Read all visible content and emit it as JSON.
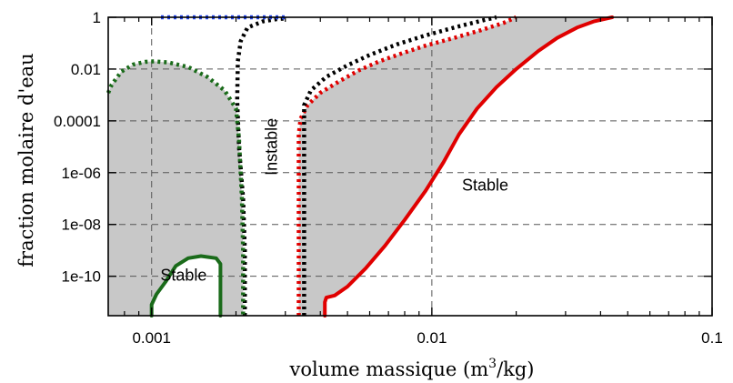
{
  "chart_data": {
    "type": "line",
    "title": "",
    "xlabel": "volume massique (m³/kg)",
    "xlabel_parts": {
      "main": "volume massique (m",
      "sup": "3",
      "tail": "/kg)"
    },
    "ylabel": "fraction molaire d'eau",
    "x_scale": "log",
    "y_scale": "log",
    "xlim": [
      0.0007,
      0.1
    ],
    "ylim": [
      3e-12,
      1
    ],
    "x_ticks": [
      {
        "value": 0.001,
        "label": "0.001"
      },
      {
        "value": 0.01,
        "label": "0.01"
      },
      {
        "value": 0.1,
        "label": "0.1"
      }
    ],
    "y_ticks": [
      {
        "value": 1,
        "label": "1"
      },
      {
        "value": 0.01,
        "label": "0.01"
      },
      {
        "value": 0.0001,
        "label": "0.0001"
      },
      {
        "value": 1e-06,
        "label": "1e-06"
      },
      {
        "value": 1e-08,
        "label": "1e-08"
      },
      {
        "value": 1e-10,
        "label": "1e-10"
      }
    ],
    "grid": true,
    "legend": "none",
    "shaded_regions": [
      {
        "name": "left-region",
        "color": "#c8c8c8",
        "points": [
          [
            0.0007,
            3e-12
          ],
          [
            0.0007,
            0.0012
          ],
          [
            0.00072,
            0.0025
          ],
          [
            0.00078,
            0.008
          ],
          [
            0.00086,
            0.015
          ],
          [
            0.00095,
            0.019
          ],
          [
            0.00102,
            0.02
          ],
          [
            0.00115,
            0.018
          ],
          [
            0.00135,
            0.012
          ],
          [
            0.00158,
            0.005
          ],
          [
            0.00182,
            0.0015
          ],
          [
            0.002,
            0.0003
          ],
          [
            0.00205,
            2e-05
          ],
          [
            0.0021,
            1e-07
          ],
          [
            0.00212,
            1e-09
          ],
          [
            0.00212,
            3e-12
          ],
          [
            0.00176,
            3e-12
          ],
          [
            0.00176,
            3e-10
          ],
          [
            0.0017,
            5e-10
          ],
          [
            0.0015,
            6e-10
          ],
          [
            0.00135,
            5e-10
          ],
          [
            0.00122,
            2.5e-10
          ],
          [
            0.00112,
            6e-11
          ],
          [
            0.00104,
            2e-11
          ],
          [
            0.001,
            8e-12
          ],
          [
            0.001,
            3e-12
          ]
        ]
      },
      {
        "name": "right-region",
        "color": "#c8c8c8",
        "points": [
          [
            0.00335,
            3e-12
          ],
          [
            0.00335,
            3e-05
          ],
          [
            0.0034,
            0.00012
          ],
          [
            0.0036,
            0.0004
          ],
          [
            0.004,
            0.0012
          ],
          [
            0.0047,
            0.0035
          ],
          [
            0.0055,
            0.009
          ],
          [
            0.0065,
            0.02
          ],
          [
            0.0078,
            0.04
          ],
          [
            0.0095,
            0.08
          ],
          [
            0.012,
            0.16
          ],
          [
            0.015,
            0.32
          ],
          [
            0.018,
            0.6
          ],
          [
            0.02,
            1
          ],
          [
            0.044,
            1
          ],
          [
            0.038,
            0.7
          ],
          [
            0.033,
            0.4
          ],
          [
            0.028,
            0.16
          ],
          [
            0.024,
            0.05
          ],
          [
            0.02,
            0.01
          ],
          [
            0.017,
            0.002
          ],
          [
            0.0145,
            0.0003
          ],
          [
            0.0125,
            3e-05
          ],
          [
            0.011,
            2.5e-06
          ],
          [
            0.0095,
            2e-07
          ],
          [
            0.008,
            1.5e-08
          ],
          [
            0.0068,
            1.5e-09
          ],
          [
            0.0058,
            2e-10
          ],
          [
            0.005,
            4e-11
          ],
          [
            0.0045,
            1.8e-11
          ],
          [
            0.0042,
            1.5e-11
          ],
          [
            0.00415,
            1e-11
          ],
          [
            0.00415,
            3e-12
          ]
        ]
      }
    ],
    "series": [
      {
        "color": "#e00000",
        "style": "solid",
        "points": [
          [
            0.00415,
            3e-12
          ],
          [
            0.00415,
            1e-11
          ],
          [
            0.0042,
            1.5e-11
          ],
          [
            0.0045,
            1.8e-11
          ],
          [
            0.005,
            4e-11
          ],
          [
            0.0058,
            2e-10
          ],
          [
            0.0068,
            1.5e-09
          ],
          [
            0.008,
            1.5e-08
          ],
          [
            0.0095,
            2e-07
          ],
          [
            0.011,
            2.5e-06
          ],
          [
            0.0125,
            3e-05
          ],
          [
            0.0145,
            0.0003
          ],
          [
            0.017,
            0.002
          ],
          [
            0.02,
            0.01
          ],
          [
            0.024,
            0.05
          ],
          [
            0.028,
            0.16
          ],
          [
            0.033,
            0.4
          ],
          [
            0.038,
            0.7
          ],
          [
            0.044,
            1
          ]
        ]
      },
      {
        "color": "#e00000",
        "style": "dotted",
        "points": [
          [
            0.00335,
            3e-12
          ],
          [
            0.00335,
            3e-05
          ],
          [
            0.0034,
            0.00012
          ],
          [
            0.0036,
            0.0004
          ],
          [
            0.004,
            0.0012
          ],
          [
            0.0047,
            0.0035
          ],
          [
            0.0055,
            0.009
          ],
          [
            0.0065,
            0.02
          ],
          [
            0.0078,
            0.04
          ],
          [
            0.0095,
            0.08
          ],
          [
            0.012,
            0.16
          ],
          [
            0.015,
            0.32
          ],
          [
            0.018,
            0.6
          ],
          [
            0.02,
            1
          ]
        ]
      },
      {
        "color": "#000000",
        "style": "dotted",
        "points": [
          [
            0.0035,
            3e-12
          ],
          [
            0.0035,
            0.0004
          ],
          [
            0.0037,
            0.0015
          ],
          [
            0.0042,
            0.005
          ],
          [
            0.005,
            0.014
          ],
          [
            0.006,
            0.035
          ],
          [
            0.0075,
            0.09
          ],
          [
            0.0095,
            0.2
          ],
          [
            0.0125,
            0.45
          ],
          [
            0.0155,
            0.8
          ],
          [
            0.017,
            1
          ]
        ]
      },
      {
        "color": "#000000",
        "style": "dotted",
        "points": [
          [
            0.00215,
            3e-12
          ],
          [
            0.00215,
            1e-09
          ],
          [
            0.00212,
            1e-07
          ],
          [
            0.00205,
            1e-05
          ],
          [
            0.00202,
            0.0006
          ],
          [
            0.00203,
            0.02
          ],
          [
            0.00208,
            0.12
          ],
          [
            0.0022,
            0.4
          ],
          [
            0.0025,
            0.7
          ],
          [
            0.0028,
            0.85
          ],
          [
            0.003,
            0.9
          ]
        ]
      },
      {
        "color": "#1a6b1a",
        "style": "dotted",
        "points": [
          [
            0.0007,
            0.0012
          ],
          [
            0.00072,
            0.0025
          ],
          [
            0.00078,
            0.008
          ],
          [
            0.00086,
            0.015
          ],
          [
            0.00095,
            0.019
          ],
          [
            0.00102,
            0.02
          ],
          [
            0.00115,
            0.018
          ],
          [
            0.00135,
            0.012
          ],
          [
            0.00158,
            0.005
          ],
          [
            0.00182,
            0.0015
          ],
          [
            0.002,
            0.0003
          ],
          [
            0.00205,
            2e-05
          ],
          [
            0.0021,
            1e-07
          ],
          [
            0.00212,
            1e-09
          ],
          [
            0.00212,
            3e-12
          ]
        ]
      },
      {
        "color": "#1a6b1a",
        "style": "solid",
        "points": [
          [
            0.001,
            3e-12
          ],
          [
            0.001,
            8e-12
          ],
          [
            0.00104,
            2e-11
          ],
          [
            0.00112,
            6e-11
          ],
          [
            0.00122,
            2.5e-10
          ],
          [
            0.00135,
            5e-10
          ],
          [
            0.0015,
            6e-10
          ],
          [
            0.0017,
            5e-10
          ],
          [
            0.00176,
            3e-10
          ],
          [
            0.00176,
            3e-12
          ]
        ]
      },
      {
        "color": "#2244ee",
        "style": "dotted",
        "points": [
          [
            0.00108,
            1
          ],
          [
            0.0012,
            1
          ],
          [
            0.0015,
            1
          ],
          [
            0.002,
            1
          ],
          [
            0.0025,
            1
          ],
          [
            0.003,
            1
          ]
        ]
      }
    ],
    "annotations": [
      {
        "text": "Stable",
        "x": 0.0013,
        "y": 1e-10,
        "rotation": 0
      },
      {
        "text": "Instable",
        "x": 0.0027,
        "y": 1e-05,
        "rotation": -90
      },
      {
        "text": "Stable",
        "x": 0.0155,
        "y": 3e-07,
        "rotation": 0
      }
    ]
  }
}
